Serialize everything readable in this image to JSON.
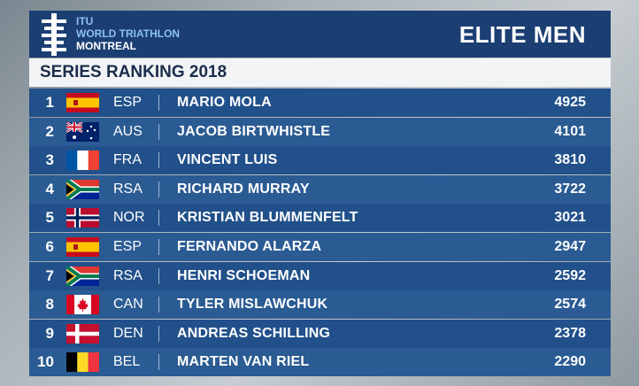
{
  "header": {
    "brand": [
      "ITU",
      "WORLD TRIATHLON",
      "MONTREAL"
    ],
    "title": "ELITE MEN"
  },
  "subtitle": "SERIES RANKING 2018",
  "table": {
    "rows": [
      [
        1,
        "ESP",
        "MARIO MOLA",
        4925
      ],
      [
        2,
        "AUS",
        "JACOB BIRTWHISTLE",
        4101
      ],
      [
        3,
        "FRA",
        "VINCENT LUIS",
        3810
      ],
      [
        4,
        "RSA",
        "RICHARD MURRAY",
        3722
      ],
      [
        5,
        "NOR",
        "KRISTIAN BLUMMENFELT",
        3021
      ],
      [
        6,
        "ESP",
        "FERNANDO ALARZA",
        2947
      ],
      [
        7,
        "RSA",
        "HENRI SCHOEMAN",
        2592
      ],
      [
        8,
        "CAN",
        "TYLER MISLAWCHUK",
        2574
      ],
      [
        9,
        "DEN",
        "ANDREAS SCHILLING",
        2378
      ],
      [
        10,
        "BEL",
        "MARTEN VAN RIEL",
        2290
      ]
    ]
  }
}
